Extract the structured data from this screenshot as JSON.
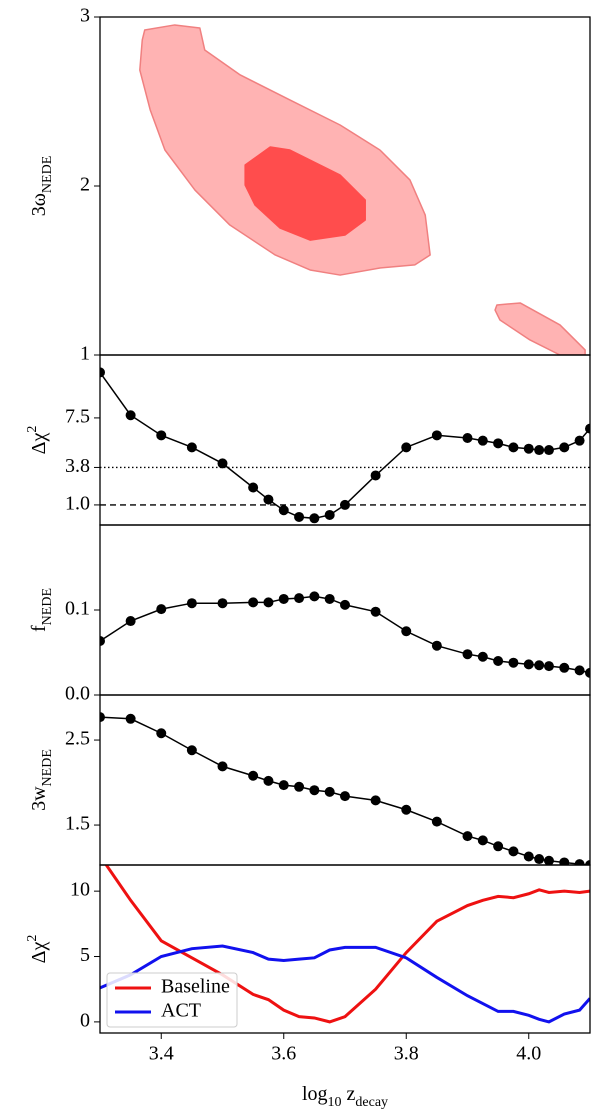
{
  "chart_data": [
    {
      "type": "contour",
      "ylabel": [
        {
          "text": "3ω"
        },
        {
          "sub": "NEDE"
        }
      ],
      "xlim": [
        3.3,
        4.1
      ],
      "ylim": [
        1,
        3
      ],
      "yticks": [
        1,
        2,
        3
      ],
      "regions": [
        {
          "color": "#ffb3b3",
          "edgecolor": "#f08080",
          "x": [
            3.373,
            3.422,
            3.463,
            3.471,
            3.529,
            3.61,
            3.692,
            3.757,
            3.806,
            3.831,
            3.839,
            3.814,
            3.757,
            3.692,
            3.643,
            3.586,
            3.512,
            3.455,
            3.406,
            3.382,
            3.365,
            3.369
          ],
          "y": [
            2.923,
            2.953,
            2.935,
            2.805,
            2.657,
            2.509,
            2.361,
            2.213,
            2.036,
            1.828,
            1.592,
            1.533,
            1.515,
            1.473,
            1.503,
            1.592,
            1.769,
            1.976,
            2.213,
            2.45,
            2.686,
            2.864
          ]
        },
        {
          "color": "#ffb3b3",
          "edgecolor": "#f08080",
          "x": [
            3.948,
            3.986,
            4.051,
            4.092,
            4.092,
            4.051,
            4.002,
            3.953,
            3.945
          ],
          "y": [
            1.296,
            1.308,
            1.178,
            1.03,
            1.0,
            1.0,
            1.089,
            1.207,
            1.266
          ]
        },
        {
          "color": "#ff4d4d",
          "edgecolor": "#ff4d4d",
          "x": [
            3.537,
            3.578,
            3.61,
            3.692,
            3.733,
            3.733,
            3.7,
            3.643,
            3.594,
            3.553,
            3.537
          ],
          "y": [
            2.124,
            2.231,
            2.213,
            2.065,
            1.917,
            1.799,
            1.71,
            1.68,
            1.751,
            1.888,
            2.006
          ]
        }
      ]
    },
    {
      "type": "line",
      "markers": true,
      "ylabel": [
        {
          "text": "Δχ"
        },
        {
          "sup": "2"
        }
      ],
      "xlim": [
        3.3,
        4.1
      ],
      "ylim": [
        -0.5,
        12.2
      ],
      "yticks": [
        {
          "value": 1,
          "label": "1.0"
        },
        3.8,
        7.5
      ],
      "hlines": [
        {
          "value": 3.8,
          "style": "dotted"
        },
        {
          "value": 1,
          "style": "dashed"
        }
      ],
      "x": [
        3.3,
        3.35,
        3.4,
        3.45,
        3.5,
        3.55,
        3.575,
        3.6,
        3.625,
        3.65,
        3.675,
        3.7,
        3.75,
        3.8,
        3.85,
        3.9,
        3.925,
        3.95,
        3.975,
        4.0,
        4.017,
        4.033,
        4.058,
        4.083,
        4.1
      ],
      "series": [
        {
          "color": "#000000",
          "values": [
            10.9,
            7.7,
            6.2,
            5.3,
            4.1,
            2.3,
            1.4,
            0.6,
            0.1,
            0.0,
            0.25,
            1.0,
            3.2,
            5.3,
            6.2,
            6.0,
            5.8,
            5.6,
            5.3,
            5.2,
            5.1,
            5.1,
            5.3,
            5.8,
            6.7
          ]
        }
      ]
    },
    {
      "type": "line",
      "markers": true,
      "ylabel": [
        {
          "text": "f"
        },
        {
          "sub": "NEDE"
        }
      ],
      "xlim": [
        3.3,
        4.1
      ],
      "ylim": [
        0,
        0.2
      ],
      "yticks": [
        {
          "value": 0,
          "label": "0.0"
        },
        0.1
      ],
      "x": [
        3.3,
        3.35,
        3.4,
        3.45,
        3.5,
        3.55,
        3.575,
        3.6,
        3.625,
        3.65,
        3.675,
        3.7,
        3.75,
        3.8,
        3.85,
        3.9,
        3.925,
        3.95,
        3.975,
        4.0,
        4.017,
        4.033,
        4.058,
        4.083,
        4.1
      ],
      "series": [
        {
          "color": "#000000",
          "values": [
            0.0635,
            0.087,
            0.101,
            0.108,
            0.108,
            0.109,
            0.109,
            0.113,
            0.114,
            0.116,
            0.113,
            0.106,
            0.098,
            0.075,
            0.058,
            0.048,
            0.045,
            0.04,
            0.038,
            0.036,
            0.035,
            0.034,
            0.032,
            0.029,
            0.026
          ]
        }
      ]
    },
    {
      "type": "line",
      "markers": true,
      "ylabel": [
        {
          "text": "3w"
        },
        {
          "sub": "NEDE"
        }
      ],
      "xlim": [
        3.3,
        4.1
      ],
      "ylim": [
        1.03,
        3.03
      ],
      "yticks": [
        2.5,
        1.5
      ],
      "x": [
        3.3,
        3.35,
        3.4,
        3.45,
        3.5,
        3.55,
        3.575,
        3.6,
        3.625,
        3.65,
        3.675,
        3.7,
        3.75,
        3.8,
        3.85,
        3.9,
        3.925,
        3.95,
        3.975,
        4.0,
        4.017,
        4.033,
        4.058,
        4.083,
        4.1
      ],
      "series": [
        {
          "color": "#000000",
          "values": [
            2.77,
            2.75,
            2.58,
            2.38,
            2.19,
            2.08,
            2.02,
            1.97,
            1.95,
            1.91,
            1.89,
            1.84,
            1.79,
            1.68,
            1.54,
            1.37,
            1.32,
            1.25,
            1.19,
            1.13,
            1.1,
            1.08,
            1.06,
            1.04,
            1.03
          ]
        }
      ]
    },
    {
      "type": "line",
      "markers": false,
      "ylabel": [
        {
          "text": "Δχ"
        },
        {
          "sup": "2"
        }
      ],
      "xlabel": [
        {
          "text": "log"
        },
        {
          "sub": "10"
        },
        {
          "text": " z"
        },
        {
          "sub": "decay"
        }
      ],
      "xlim": [
        3.3,
        4.1
      ],
      "xticks": [
        3.4,
        3.6,
        3.8,
        {
          "value": 4,
          "label": "4.0"
        }
      ],
      "ylim": [
        -0.85,
        12
      ],
      "yticks": [
        0,
        5,
        10
      ],
      "legend": "lower left",
      "x": [
        3.3,
        3.35,
        3.4,
        3.45,
        3.5,
        3.55,
        3.575,
        3.6,
        3.625,
        3.65,
        3.675,
        3.7,
        3.75,
        3.8,
        3.85,
        3.9,
        3.925,
        3.95,
        3.975,
        4.0,
        4.017,
        4.033,
        4.058,
        4.083,
        4.1
      ],
      "series": [
        {
          "name": "Baseline",
          "color": "#ee1111",
          "values": [
            12.7,
            9.3,
            6.2,
            4.9,
            3.6,
            2.1,
            1.7,
            0.9,
            0.4,
            0.3,
            0.0,
            0.4,
            2.5,
            5.3,
            7.7,
            8.9,
            9.3,
            9.6,
            9.5,
            9.8,
            10.1,
            9.9,
            10.0,
            9.9,
            10.0
          ]
        },
        {
          "name": "ACT",
          "color": "#1111ee",
          "values": [
            2.6,
            3.6,
            5.0,
            5.6,
            5.8,
            5.3,
            4.8,
            4.7,
            4.8,
            4.9,
            5.5,
            5.7,
            5.7,
            4.9,
            3.4,
            2.0,
            1.4,
            0.8,
            0.8,
            0.5,
            0.2,
            0.0,
            0.6,
            0.9,
            1.8
          ]
        }
      ]
    }
  ]
}
